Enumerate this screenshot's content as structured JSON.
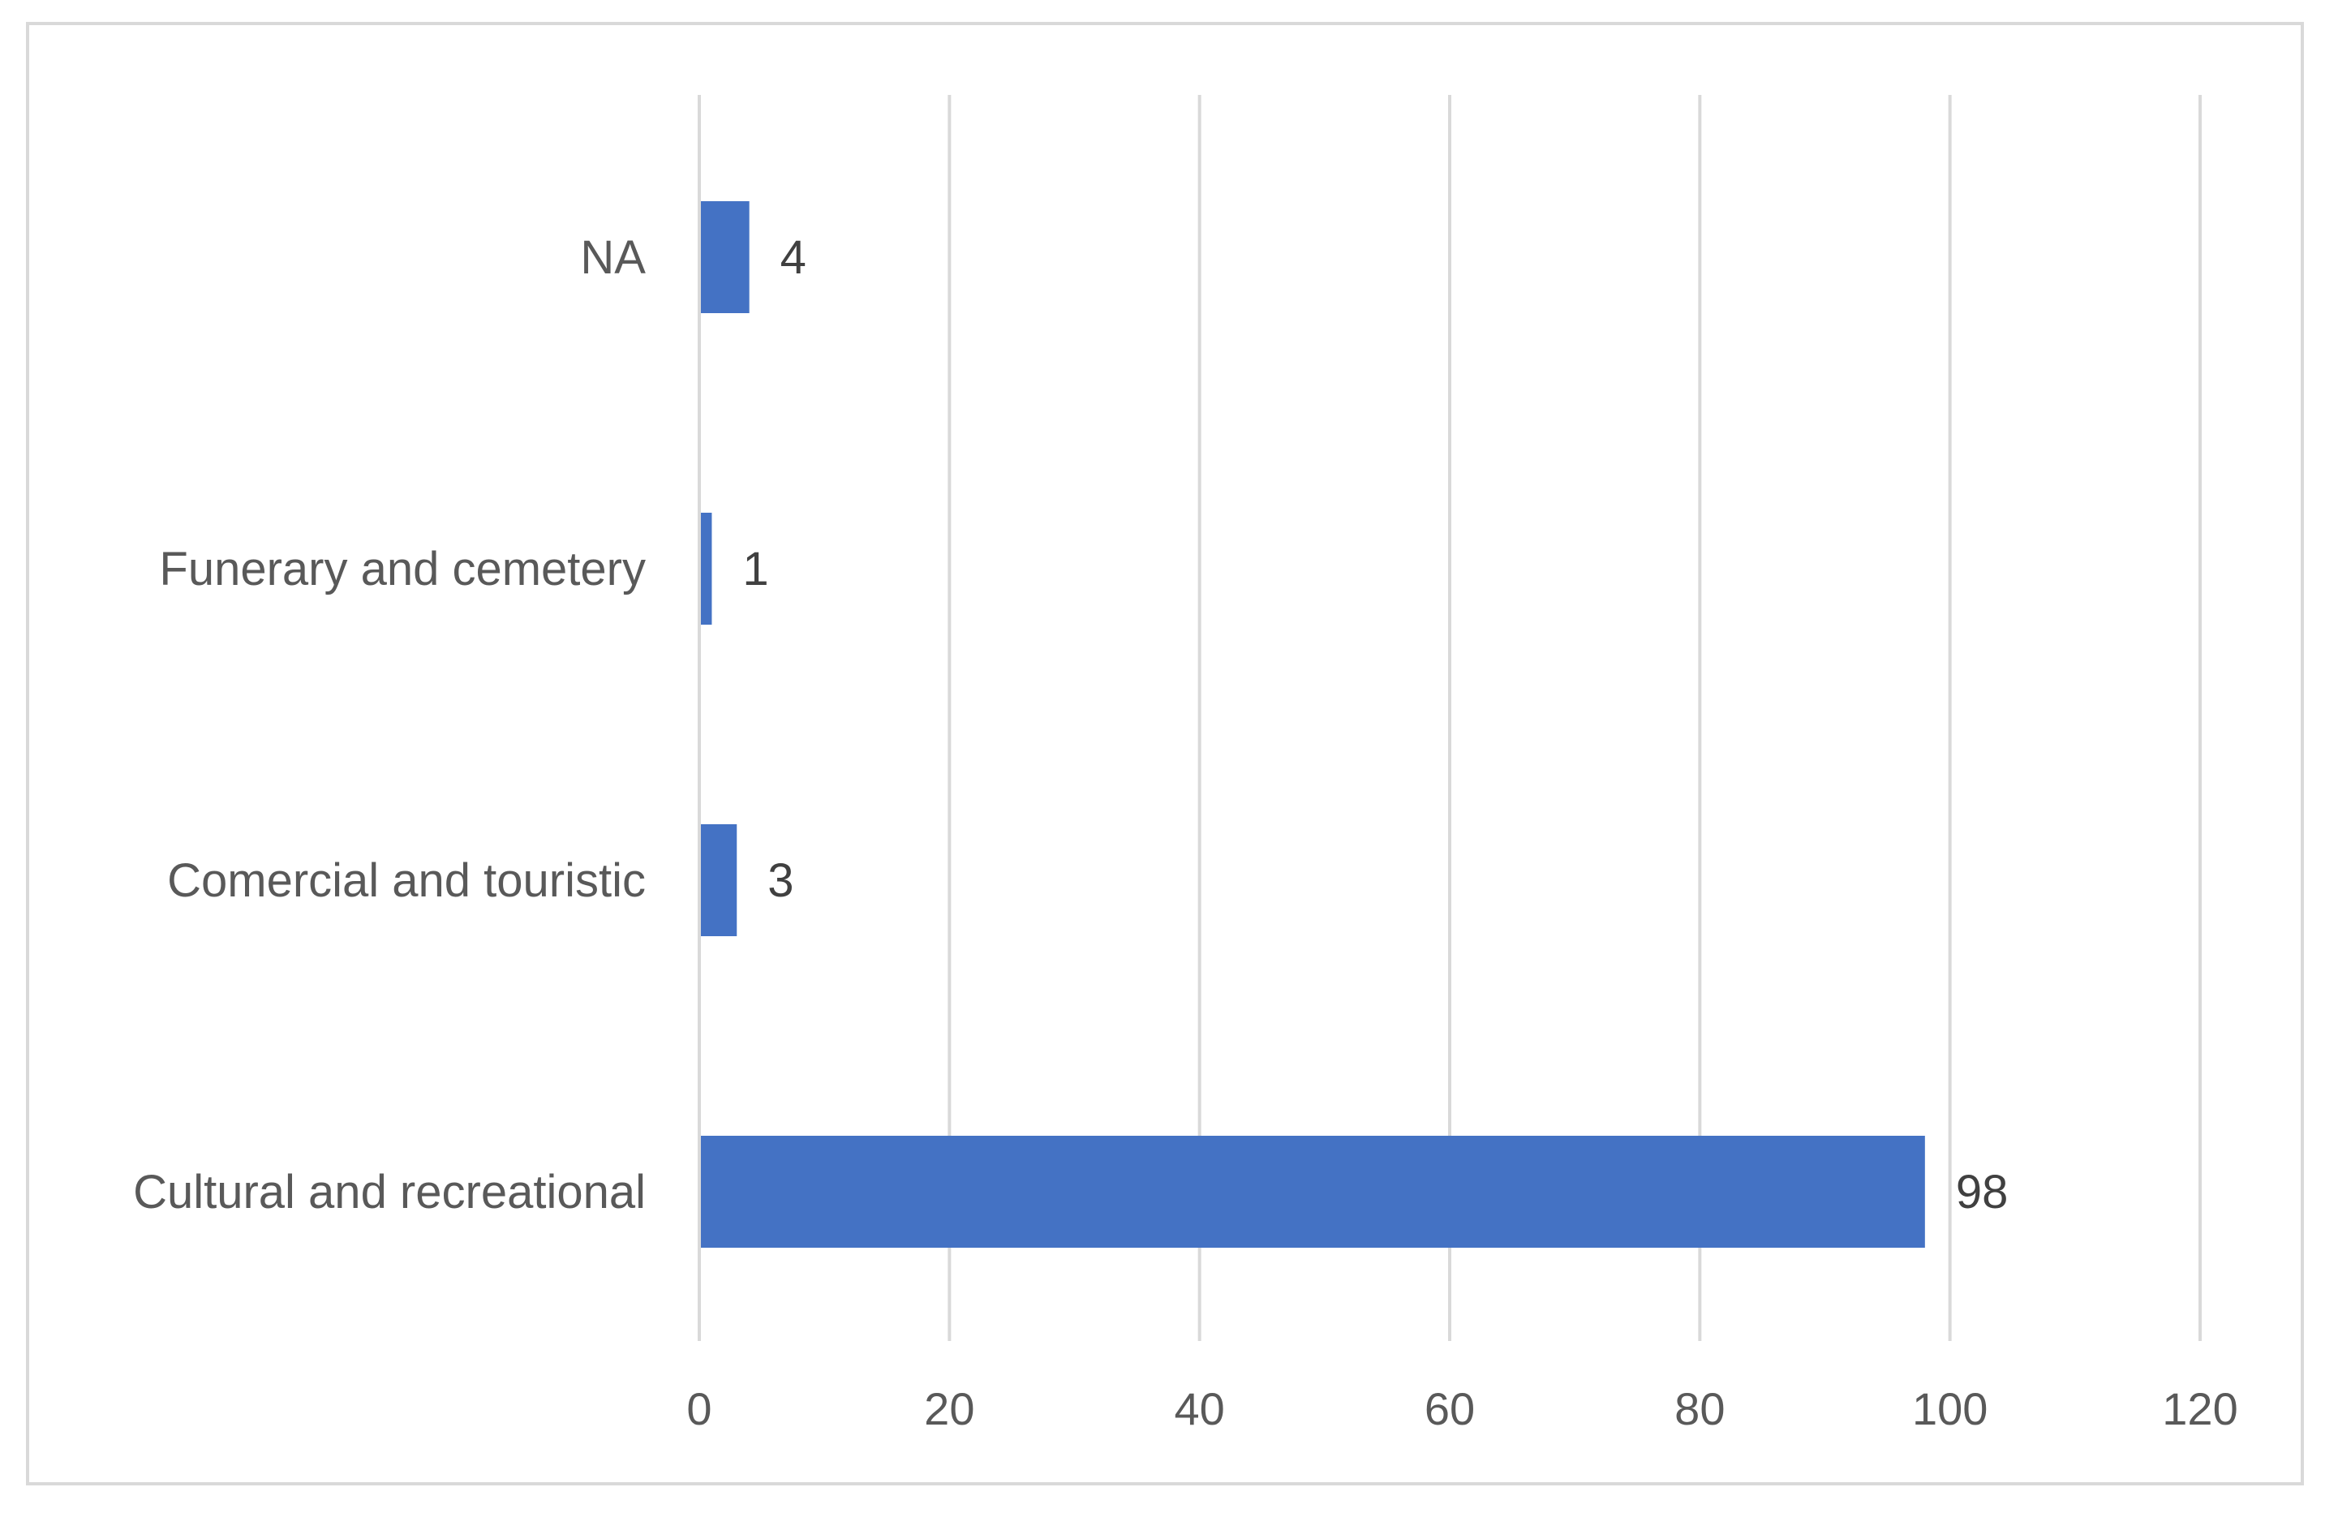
{
  "chart_data": {
    "type": "bar",
    "orientation": "horizontal",
    "categories": [
      "NA",
      "Funerary and cemetery",
      "Comercial and touristic",
      "Cultural and recreational"
    ],
    "values": [
      4,
      1,
      3,
      98
    ],
    "data_labels": [
      "4",
      "1",
      "3",
      "98"
    ],
    "title": "",
    "xlabel": "",
    "ylabel": "",
    "xlim": [
      0,
      120
    ],
    "x_ticks": [
      0,
      20,
      40,
      60,
      80,
      100,
      120
    ],
    "x_tick_labels": [
      "0",
      "20",
      "40",
      "60",
      "80",
      "100",
      "120"
    ],
    "grid": true,
    "grid_axis": "x",
    "legend": "none",
    "bar_color": "#4472c4",
    "gridline_color": "#d9d9d9"
  }
}
